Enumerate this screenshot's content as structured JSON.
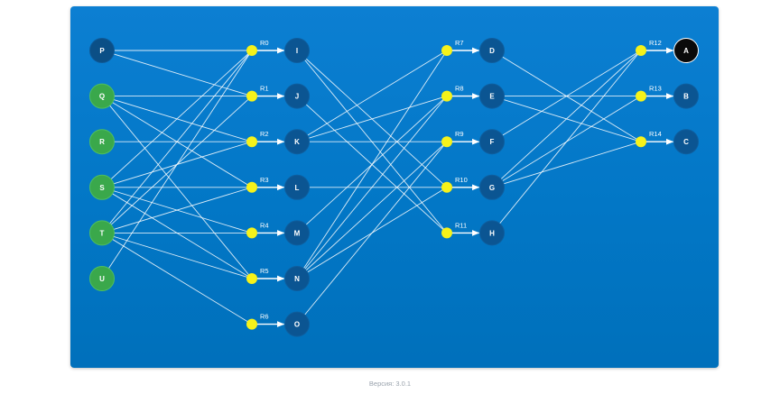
{
  "footer": {
    "version": "Версия: 3.0.1"
  },
  "colors": {
    "fact_node": "#3aa84b",
    "fact_node_dim": "#0b4f86",
    "derived_node": "#0b5592",
    "goal_node": "#0a0a0a",
    "rule_dot": "#f6f21a",
    "edge": "#ffffff"
  },
  "facts": [
    {
      "id": "P",
      "active": false
    },
    {
      "id": "Q",
      "active": true
    },
    {
      "id": "R",
      "active": true
    },
    {
      "id": "S",
      "active": true
    },
    {
      "id": "T",
      "active": true
    },
    {
      "id": "U",
      "active": true
    }
  ],
  "level1": [
    "I",
    "J",
    "K",
    "L",
    "M",
    "N",
    "O"
  ],
  "level2": [
    "D",
    "E",
    "F",
    "G",
    "H"
  ],
  "level3": [
    {
      "id": "A",
      "goal": true
    },
    {
      "id": "B",
      "goal": false
    },
    {
      "id": "C",
      "goal": false
    }
  ],
  "rules": [
    {
      "name": "R0",
      "inputs": [
        "P",
        "S",
        "T",
        "U"
      ],
      "output": "I"
    },
    {
      "name": "R1",
      "inputs": [
        "P",
        "Q",
        "T"
      ],
      "output": "J"
    },
    {
      "name": "R2",
      "inputs": [
        "Q",
        "R",
        "S"
      ],
      "output": "K"
    },
    {
      "name": "R3",
      "inputs": [
        "Q",
        "S",
        "T"
      ],
      "output": "L"
    },
    {
      "name": "R4",
      "inputs": [
        "S",
        "T"
      ],
      "output": "M"
    },
    {
      "name": "R5",
      "inputs": [
        "Q",
        "S",
        "T"
      ],
      "output": "N"
    },
    {
      "name": "R6",
      "inputs": [
        "T"
      ],
      "output": "O"
    },
    {
      "name": "R7",
      "inputs": [
        "K",
        "N"
      ],
      "output": "D"
    },
    {
      "name": "R8",
      "inputs": [
        "K",
        "M",
        "N"
      ],
      "output": "E"
    },
    {
      "name": "R9",
      "inputs": [
        "K",
        "N",
        "O"
      ],
      "output": "F"
    },
    {
      "name": "R10",
      "inputs": [
        "I",
        "L",
        "N"
      ],
      "output": "G"
    },
    {
      "name": "R11",
      "inputs": [
        "I",
        "J"
      ],
      "output": "H"
    },
    {
      "name": "R12",
      "inputs": [
        "F",
        "G",
        "H"
      ],
      "output": "A"
    },
    {
      "name": "R13",
      "inputs": [
        "E",
        "G"
      ],
      "output": "B"
    },
    {
      "name": "R14",
      "inputs": [
        "D",
        "E",
        "G"
      ],
      "output": "C"
    }
  ]
}
